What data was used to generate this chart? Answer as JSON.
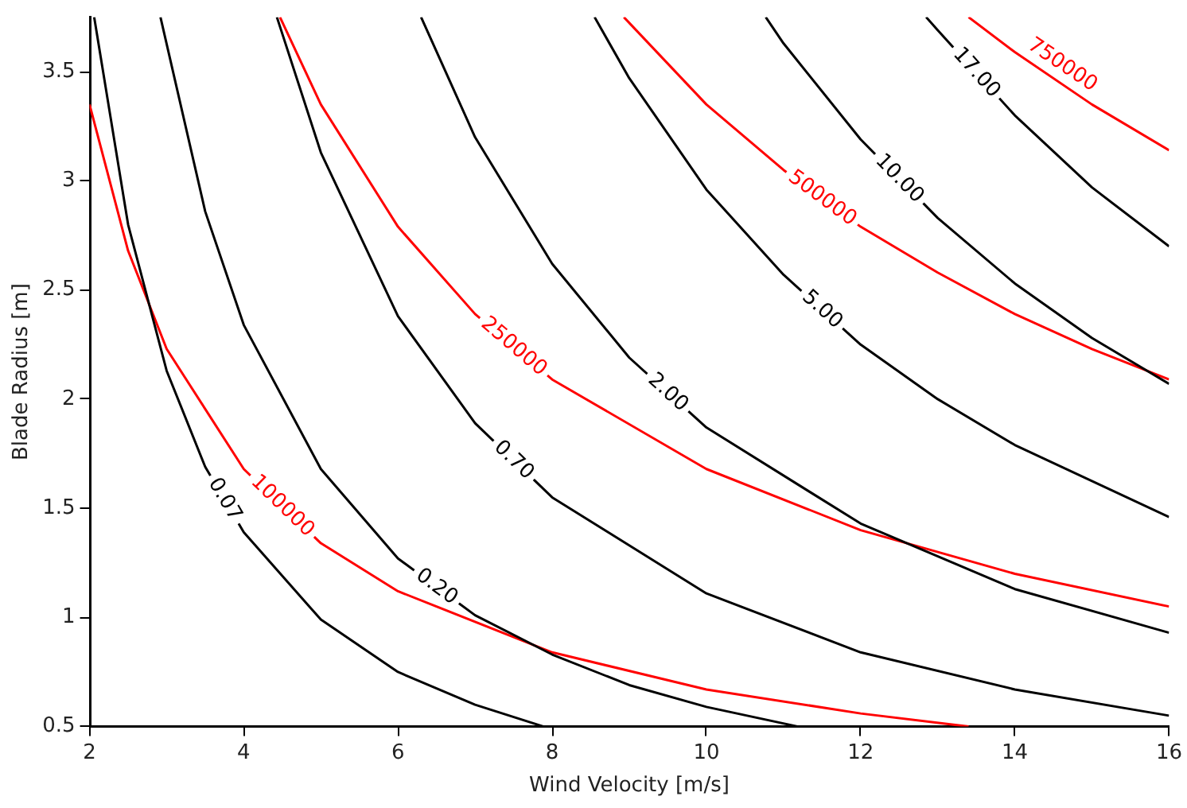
{
  "chart_data": {
    "type": "line",
    "xlabel": "Wind Velocity [m/s]",
    "ylabel": "Blade Radius [m]",
    "xlim": [
      2,
      16
    ],
    "xticks": [
      2,
      4,
      6,
      8,
      10,
      12,
      14,
      16
    ],
    "ylim": [
      0.5,
      3.75
    ],
    "yticks": [
      0.5,
      1.0,
      1.5,
      2.0,
      2.5,
      3.0,
      3.5
    ],
    "grid": false,
    "legend": false,
    "marker": "none",
    "line_style": "solid",
    "series": [
      {
        "name": "0.07",
        "color": "#000000",
        "x": [
          2.06,
          2.5,
          3,
          3.5,
          4,
          5,
          6,
          7,
          7.89
        ],
        "values": [
          3.75,
          2.8,
          2.13,
          1.69,
          1.39,
          0.99,
          0.75,
          0.6,
          0.5
        ]
      },
      {
        "name": "0.20",
        "color": "#000000",
        "x": [
          2.92,
          3.5,
          4,
          5,
          6,
          7,
          8,
          9,
          10,
          11.19
        ],
        "values": [
          3.75,
          2.86,
          2.34,
          1.68,
          1.27,
          1.01,
          0.83,
          0.69,
          0.59,
          0.5
        ]
      },
      {
        "name": "0.70",
        "color": "#000000",
        "x": [
          4.43,
          5,
          6,
          7,
          8,
          10,
          12,
          14,
          16
        ],
        "values": [
          3.75,
          3.13,
          2.38,
          1.89,
          1.55,
          1.11,
          0.84,
          0.67,
          0.55
        ]
      },
      {
        "name": "2.00",
        "color": "#000000",
        "x": [
          6.3,
          7,
          8,
          9,
          10,
          12,
          14,
          16
        ],
        "values": [
          3.75,
          3.2,
          2.62,
          2.19,
          1.87,
          1.43,
          1.13,
          0.93
        ]
      },
      {
        "name": "5.00",
        "color": "#000000",
        "x": [
          8.55,
          9,
          10,
          11,
          12,
          13,
          14,
          16
        ],
        "values": [
          3.75,
          3.47,
          2.96,
          2.57,
          2.25,
          2.0,
          1.79,
          1.46
        ]
      },
      {
        "name": "10.00",
        "color": "#000000",
        "x": [
          10.77,
          11,
          12,
          13,
          14,
          15,
          16
        ],
        "values": [
          3.75,
          3.63,
          3.19,
          2.83,
          2.53,
          2.28,
          2.07
        ]
      },
      {
        "name": "17.00",
        "color": "#000000",
        "x": [
          12.85,
          13,
          14,
          15,
          16
        ],
        "values": [
          3.75,
          3.69,
          3.3,
          2.97,
          2.7
        ]
      },
      {
        "name": "100000",
        "color": "#ff0000",
        "x": [
          2,
          2.5,
          3,
          4,
          5,
          6,
          8,
          10,
          12,
          13.4
        ],
        "values": [
          3.35,
          2.68,
          2.23,
          1.68,
          1.34,
          1.12,
          0.84,
          0.67,
          0.56,
          0.5
        ]
      },
      {
        "name": "250000",
        "color": "#ff0000",
        "x": [
          4.47,
          5,
          6,
          7,
          8,
          10,
          12,
          14,
          16
        ],
        "values": [
          3.75,
          3.35,
          2.79,
          2.39,
          2.09,
          1.68,
          1.4,
          1.2,
          1.05
        ]
      },
      {
        "name": "500000",
        "color": "#ff0000",
        "x": [
          8.93,
          10,
          11,
          12,
          13,
          14,
          15,
          16
        ],
        "values": [
          3.75,
          3.35,
          3.05,
          2.79,
          2.58,
          2.39,
          2.23,
          2.09
        ]
      },
      {
        "name": "750000",
        "color": "#ff0000",
        "x": [
          13.4,
          14,
          15,
          16
        ],
        "values": [
          3.75,
          3.59,
          3.35,
          3.14
        ]
      }
    ]
  }
}
